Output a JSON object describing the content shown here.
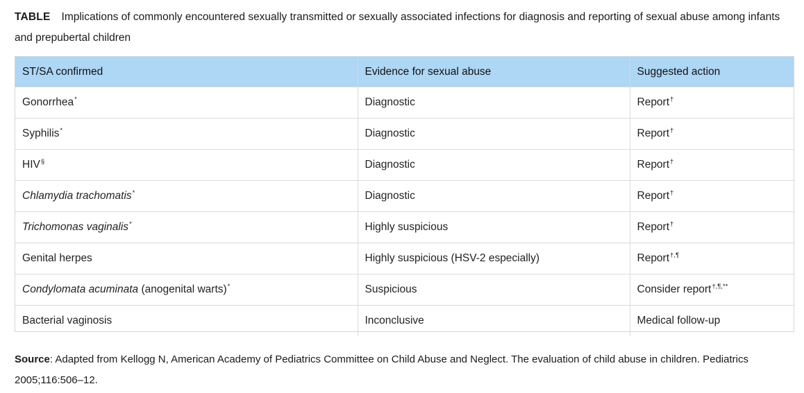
{
  "caption": {
    "tag": "TABLE",
    "title": "Implications of commonly encountered sexually transmitted or sexually associated infections for diagnosis and reporting of sexual abuse among infants and prepubertal children"
  },
  "table": {
    "headers": [
      "ST/SA confirmed",
      "Evidence for sexual abuse",
      "Suggested action"
    ],
    "rows": [
      {
        "infection": "Gonorrhea",
        "infection_mark": "*",
        "italic": false,
        "extra": "",
        "extra_mark": "",
        "evidence": "Diagnostic",
        "action": "Report",
        "action_mark": "†"
      },
      {
        "infection": "Syphilis",
        "infection_mark": "*",
        "italic": false,
        "extra": "",
        "extra_mark": "",
        "evidence": "Diagnostic",
        "action": "Report",
        "action_mark": "†"
      },
      {
        "infection": "HIV",
        "infection_mark": "§",
        "italic": false,
        "extra": "",
        "extra_mark": "",
        "evidence": "Diagnostic",
        "action": "Report",
        "action_mark": "†"
      },
      {
        "infection": "Chlamydia trachomatis",
        "infection_mark": "*",
        "italic": true,
        "extra": "",
        "extra_mark": "",
        "evidence": "Diagnostic",
        "action": "Report",
        "action_mark": "†"
      },
      {
        "infection": "Trichomonas vaginalis",
        "infection_mark": "*",
        "italic": true,
        "extra": "",
        "extra_mark": "",
        "evidence": "Highly suspicious",
        "action": "Report",
        "action_mark": "†"
      },
      {
        "infection": "Genital herpes",
        "infection_mark": "",
        "italic": false,
        "extra": "",
        "extra_mark": "",
        "evidence": "Highly suspicious (HSV-2 especially)",
        "action": "Report",
        "action_mark": "†,¶"
      },
      {
        "infection": "Condylomata acuminata",
        "infection_mark": "",
        "italic": true,
        "extra": " (anogenital warts)",
        "extra_mark": "*",
        "evidence": "Suspicious",
        "action": "Consider report",
        "action_mark": "†,¶,**"
      },
      {
        "infection": "Bacterial vaginosis",
        "infection_mark": "",
        "italic": false,
        "extra": "",
        "extra_mark": "",
        "evidence": "Inconclusive",
        "action": "Medical follow-up",
        "action_mark": ""
      }
    ]
  },
  "source": {
    "label": "Source",
    "text": ": Adapted from Kellogg N, American Academy of Pediatrics Committee on Child Abuse and Neglect. The evaluation of child abuse in children. Pediatrics 2005;116:506–12."
  }
}
